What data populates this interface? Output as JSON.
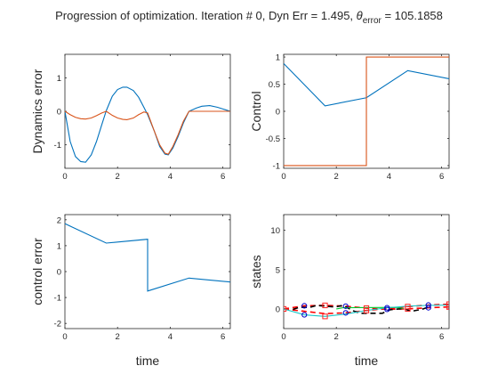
{
  "figure": {
    "title_main": "Progression of optimization. Iteration # 0, Dyn Err = 1.495,  ",
    "title_theta": "θ",
    "title_sub": "error",
    "title_tail": " = 105.1858"
  },
  "colors": {
    "blue": "#0072BD",
    "orange": "#D95319",
    "red": "#FF0000",
    "black": "#000000",
    "green": "#00CC33",
    "cyan": "#1AC8C8",
    "marker_blue": "#0000CC",
    "marker_red": "#FF2222",
    "axis": "#262626"
  },
  "chart_data": [
    {
      "id": "dyn",
      "type": "line",
      "xlabel": "",
      "ylabel": "Dynamics error",
      "xlim": [
        0,
        6.2832
      ],
      "ylim": [
        -1.7,
        1.7
      ],
      "xticks": [
        0,
        2,
        4,
        6
      ],
      "yticks": [
        -1,
        0,
        1
      ],
      "series": [
        {
          "color": "blue",
          "x": [
            0,
            0.2,
            0.4,
            0.6,
            0.785,
            1.0,
            1.2,
            1.4,
            1.571,
            1.8,
            2.0,
            2.2,
            2.356,
            2.6,
            2.8,
            3.0,
            3.142,
            3.4,
            3.6,
            3.8,
            3.927,
            4.1,
            4.3,
            4.5,
            4.712,
            5.0,
            5.2,
            5.5,
            5.8,
            6.0,
            6.283
          ],
          "y": [
            0,
            -0.9,
            -1.35,
            -1.5,
            -1.52,
            -1.3,
            -0.9,
            -0.4,
            0.02,
            0.45,
            0.65,
            0.72,
            0.72,
            0.62,
            0.42,
            0.12,
            -0.1,
            -0.6,
            -1.05,
            -1.28,
            -1.3,
            -1.1,
            -0.75,
            -0.35,
            0.0,
            0.1,
            0.15,
            0.17,
            0.12,
            0.07,
            0.0
          ]
        },
        {
          "color": "orange",
          "x": [
            0,
            0.2,
            0.4,
            0.6,
            0.785,
            1.0,
            1.2,
            1.4,
            1.571,
            1.8,
            2.0,
            2.2,
            2.356,
            2.6,
            2.8,
            3.0,
            3.142,
            3.4,
            3.6,
            3.8,
            3.927,
            4.1,
            4.3,
            4.5,
            4.712,
            5.0,
            5.2,
            5.5,
            5.8,
            6.0,
            6.283
          ],
          "y": [
            0,
            -0.1,
            -0.18,
            -0.22,
            -0.23,
            -0.2,
            -0.13,
            -0.05,
            0.0,
            -0.12,
            -0.2,
            -0.24,
            -0.25,
            -0.2,
            -0.1,
            -0.02,
            -0.05,
            -0.6,
            -1.0,
            -1.25,
            -1.28,
            -1.05,
            -0.7,
            -0.3,
            0.0,
            0.0,
            0.0,
            0.0,
            0.0,
            0.0,
            0.0
          ]
        }
      ]
    },
    {
      "id": "control",
      "type": "line",
      "xlabel": "",
      "ylabel": "Control",
      "xlim": [
        0,
        6.2832
      ],
      "ylim": [
        -1.05,
        1.05
      ],
      "xticks": [
        0,
        2,
        4,
        6
      ],
      "yticks": [
        -1,
        -0.5,
        0,
        0.5,
        1
      ],
      "series": [
        {
          "color": "blue",
          "x": [
            0,
            1.571,
            3.142,
            4.712,
            6.283
          ],
          "y": [
            0.88,
            0.1,
            0.25,
            0.75,
            0.6
          ]
        },
        {
          "color": "orange",
          "x": [
            0,
            3.142,
            3.142,
            6.283
          ],
          "y": [
            -1,
            -1,
            1,
            1
          ]
        }
      ]
    },
    {
      "id": "ctrlerr",
      "type": "line",
      "xlabel": "time",
      "ylabel": "control error",
      "xlim": [
        0,
        6.2832
      ],
      "ylim": [
        -2.2,
        2.2
      ],
      "xticks": [
        0,
        2,
        4,
        6
      ],
      "yticks": [
        -2,
        -1,
        0,
        1,
        2
      ],
      "series": [
        {
          "color": "blue",
          "x": [
            0,
            1.571,
            3.142,
            3.142,
            4.712,
            6.283
          ],
          "y": [
            1.85,
            1.1,
            1.25,
            -0.75,
            -0.25,
            -0.4
          ]
        }
      ]
    },
    {
      "id": "states",
      "type": "line",
      "xlabel": "time",
      "ylabel": "states",
      "xlim": [
        0,
        6.2832
      ],
      "ylim": [
        -2.5,
        12
      ],
      "xticks": [
        0,
        2,
        4,
        6
      ],
      "yticks": [
        0,
        5,
        10
      ],
      "series": [
        {
          "color": "red",
          "dashed": true,
          "x": [
            0,
            0.785,
            1.571,
            2.356,
            3.142,
            3.927,
            4.712,
            5.498,
            6.283
          ],
          "y": [
            0,
            0.4,
            0.45,
            0.35,
            0.1,
            -0.05,
            0.0,
            0.15,
            0.25
          ]
        },
        {
          "color": "red",
          "dashed": true,
          "x": [
            0,
            0.785,
            1.571,
            2.356,
            3.142,
            3.927,
            4.712,
            5.498,
            6.283
          ],
          "y": [
            0,
            -0.3,
            -0.6,
            -0.5,
            -0.2,
            0.05,
            0.3,
            0.5,
            0.6
          ]
        },
        {
          "color": "black",
          "dashed": true,
          "x": [
            0.35,
            0.6,
            1.0,
            1.25,
            1.95,
            2.25,
            2.65,
            2.9,
            3.75,
            4.05,
            4.55,
            4.85,
            5.25,
            5.55
          ],
          "y": [
            -0.05,
            0.2,
            0.2,
            0.45,
            0.25,
            0.45,
            -0.25,
            -0.55,
            -0.55,
            -0.1,
            0.05,
            -0.3,
            -0.05,
            0.3
          ]
        },
        {
          "color": "green",
          "dashed": false,
          "x": [
            2.0,
            2.25,
            4.3,
            4.55
          ],
          "y": [
            0.0,
            0.15,
            0.2,
            0.05
          ]
        },
        {
          "color": "cyan",
          "dashed": false,
          "x": [
            0,
            0.785,
            1.571,
            2.356,
            3.142,
            3.927,
            4.712,
            5.498,
            6.283
          ],
          "y": [
            0,
            -0.75,
            -0.95,
            -0.65,
            -0.2,
            0.15,
            0.35,
            0.45,
            0.5
          ]
        }
      ],
      "markers_circle": {
        "color": "marker_blue",
        "x": [
          0.785,
          0.785,
          2.356,
          2.356,
          3.927,
          3.927,
          5.498,
          5.498
        ],
        "y": [
          0.4,
          -0.75,
          0.35,
          -0.5,
          -0.05,
          0.15,
          0.15,
          0.5
        ]
      },
      "markers_square": {
        "color": "marker_red",
        "x": [
          0,
          1.571,
          1.571,
          3.142,
          3.142,
          4.712,
          4.712,
          6.283,
          6.283
        ],
        "y": [
          0,
          0.45,
          -0.95,
          0.1,
          -0.2,
          0.0,
          0.3,
          0.25,
          0.6
        ]
      }
    }
  ]
}
